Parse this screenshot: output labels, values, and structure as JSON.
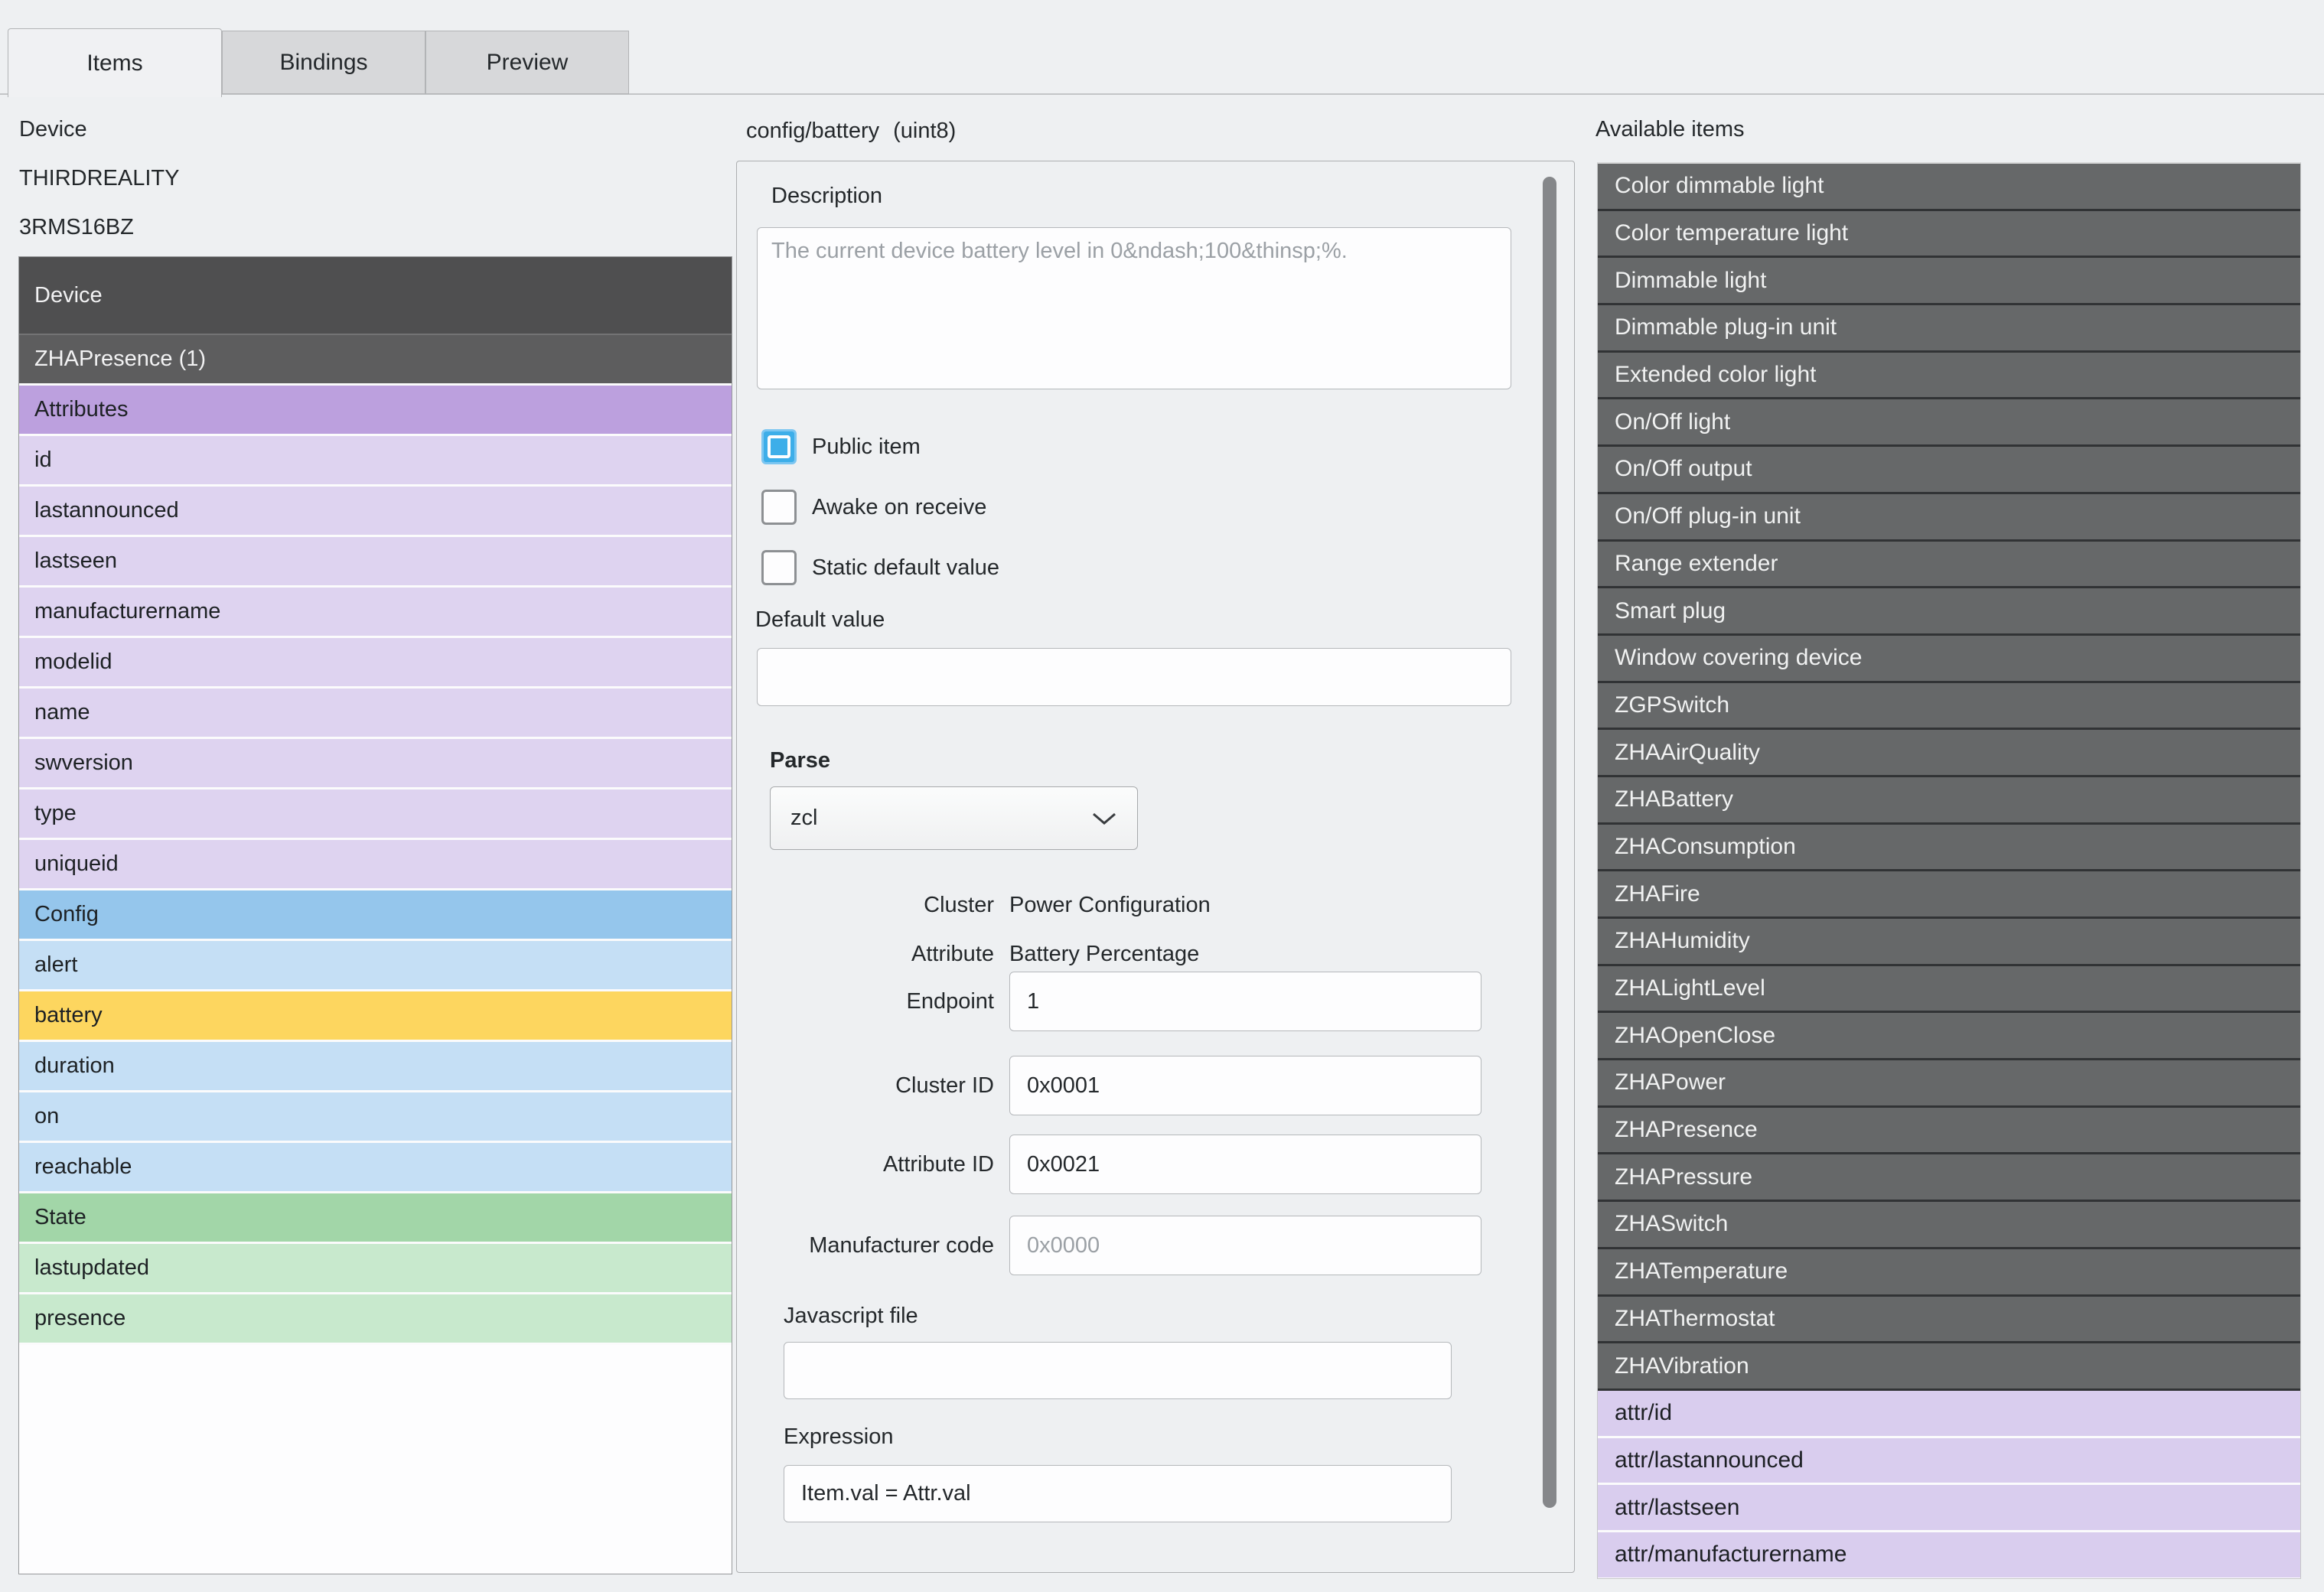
{
  "tabs": [
    {
      "label": "Items",
      "active": true
    },
    {
      "label": "Bindings",
      "active": false
    },
    {
      "label": "Preview",
      "active": false
    }
  ],
  "device_panel": {
    "heading": "Device",
    "manufacturer": "THIRDREALITY",
    "model": "3RMS16BZ",
    "tree": [
      {
        "label": "Device",
        "variant": "dark-a"
      },
      {
        "label": "ZHAPresence (1)",
        "variant": "dark-b"
      },
      {
        "label": "Attributes",
        "variant": "purple-head"
      },
      {
        "label": "id",
        "variant": "purple"
      },
      {
        "label": "lastannounced",
        "variant": "purple"
      },
      {
        "label": "lastseen",
        "variant": "purple"
      },
      {
        "label": "manufacturername",
        "variant": "purple"
      },
      {
        "label": "modelid",
        "variant": "purple"
      },
      {
        "label": "name",
        "variant": "purple"
      },
      {
        "label": "swversion",
        "variant": "purple"
      },
      {
        "label": "type",
        "variant": "purple"
      },
      {
        "label": "uniqueid",
        "variant": "purple"
      },
      {
        "label": "Config",
        "variant": "blue-head"
      },
      {
        "label": "alert",
        "variant": "blue"
      },
      {
        "label": "battery",
        "variant": "selected"
      },
      {
        "label": "duration",
        "variant": "blue"
      },
      {
        "label": "on",
        "variant": "blue"
      },
      {
        "label": "reachable",
        "variant": "blue"
      },
      {
        "label": "State",
        "variant": "green-head"
      },
      {
        "label": "lastupdated",
        "variant": "green"
      },
      {
        "label": "presence",
        "variant": "green"
      }
    ]
  },
  "editor_panel": {
    "title_item": "config/battery",
    "title_type": "(uint8)",
    "description_label": "Description",
    "description_placeholder": "The current device battery level in 0&ndash;100&thinsp;%.",
    "description_value": "",
    "checkboxes": [
      {
        "label": "Public item",
        "checked": true
      },
      {
        "label": "Awake on receive",
        "checked": false
      },
      {
        "label": "Static default value",
        "checked": false
      }
    ],
    "default_value_label": "Default value",
    "default_value": "",
    "parse": {
      "label": "Parse",
      "function_value": "zcl",
      "cluster_label": "Cluster",
      "cluster_value": "Power Configuration",
      "attribute_label": "Attribute",
      "attribute_value": "Battery Percentage",
      "endpoint_label": "Endpoint",
      "endpoint_value": "1",
      "cluster_id_label": "Cluster ID",
      "cluster_id_value": "0x0001",
      "attribute_id_label": "Attribute ID",
      "attribute_id_value": "0x0021",
      "manufacturer_code_label": "Manufacturer code",
      "manufacturer_code_placeholder": "0x0000",
      "javascript_file_label": "Javascript file",
      "javascript_file_value": "",
      "expression_label": "Expression",
      "expression_value": "Item.val = Attr.val"
    }
  },
  "available_panel": {
    "heading": "Available items",
    "items": [
      {
        "label": "Color dimmable light",
        "variant": "avail-dark"
      },
      {
        "label": "Color temperature light",
        "variant": "avail-dark"
      },
      {
        "label": "Dimmable light",
        "variant": "avail-dark"
      },
      {
        "label": "Dimmable plug-in unit",
        "variant": "avail-dark"
      },
      {
        "label": "Extended color light",
        "variant": "avail-dark"
      },
      {
        "label": "On/Off light",
        "variant": "avail-dark"
      },
      {
        "label": "On/Off output",
        "variant": "avail-dark"
      },
      {
        "label": "On/Off plug-in unit",
        "variant": "avail-dark"
      },
      {
        "label": "Range extender",
        "variant": "avail-dark"
      },
      {
        "label": "Smart plug",
        "variant": "avail-dark"
      },
      {
        "label": "Window covering device",
        "variant": "avail-dark"
      },
      {
        "label": "ZGPSwitch",
        "variant": "avail-dark"
      },
      {
        "label": "ZHAAirQuality",
        "variant": "avail-dark"
      },
      {
        "label": "ZHABattery",
        "variant": "avail-dark"
      },
      {
        "label": "ZHAConsumption",
        "variant": "avail-dark"
      },
      {
        "label": "ZHAFire",
        "variant": "avail-dark"
      },
      {
        "label": "ZHAHumidity",
        "variant": "avail-dark"
      },
      {
        "label": "ZHALightLevel",
        "variant": "avail-dark"
      },
      {
        "label": "ZHAOpenClose",
        "variant": "avail-dark"
      },
      {
        "label": "ZHAPower",
        "variant": "avail-dark"
      },
      {
        "label": "ZHAPresence",
        "variant": "avail-dark"
      },
      {
        "label": "ZHAPressure",
        "variant": "avail-dark"
      },
      {
        "label": "ZHASwitch",
        "variant": "avail-dark"
      },
      {
        "label": "ZHATemperature",
        "variant": "avail-dark"
      },
      {
        "label": "ZHAThermostat",
        "variant": "avail-dark"
      },
      {
        "label": "ZHAVibration",
        "variant": "avail-dark"
      },
      {
        "label": "attr/id",
        "variant": "avail-purple"
      },
      {
        "label": "attr/lastannounced",
        "variant": "avail-purple"
      },
      {
        "label": "attr/lastseen",
        "variant": "avail-purple"
      },
      {
        "label": "attr/manufacturername",
        "variant": "avail-purple"
      }
    ]
  },
  "colors": {
    "background": "#eef0f2",
    "dark_row": "#4f4f50",
    "purple_header": "#bca0de",
    "purple_item": "#ded3f0",
    "blue_header": "#95c6ec",
    "blue_item": "#c5dff5",
    "selected_item_yellow": "#fdd65f",
    "green_header": "#a2d6a8",
    "green_item": "#c8e9cd",
    "available_dark_row": "#666869",
    "available_purple_row": "#d9cdee",
    "checkbox_checked_blue": "#3daee9",
    "scrollbar_thumb": "#85878a"
  }
}
